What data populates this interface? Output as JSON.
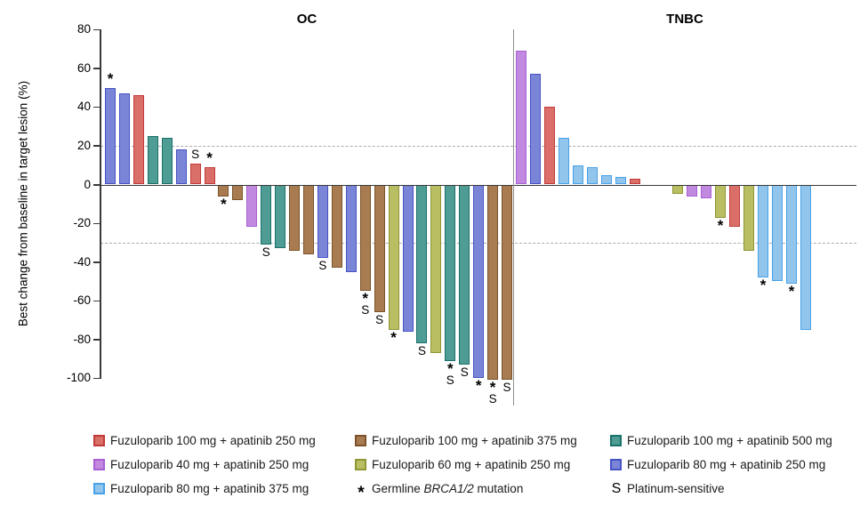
{
  "chart_data": {
    "type": "bar",
    "ylabel": "Best change from baseline in target lesion (%)",
    "ylim": [
      -100,
      80
    ],
    "yticks": [
      80,
      60,
      40,
      20,
      0,
      -20,
      -40,
      -60,
      -80,
      -100
    ],
    "reference_lines": [
      20,
      -30
    ],
    "grid": "off",
    "groups": {
      "fuz100_apa250": {
        "label": "Fuzuloparib 100 mg + apatinib 250 mg",
        "fill": "#D96F68",
        "stroke": "#C33B38"
      },
      "fuz40_apa250": {
        "label": "Fuzuloparib 40 mg + apatinib 250 mg",
        "fill": "#C18AE0",
        "stroke": "#A95FD3"
      },
      "fuz80_apa375": {
        "label": "Fuzuloparib 80 mg + apatinib 375 mg",
        "fill": "#92C5EC",
        "stroke": "#47A2E9"
      },
      "fuz100_apa375": {
        "label": "Fuzuloparib 100 mg + apatinib 375 mg",
        "fill": "#A87C50",
        "stroke": "#7B5229"
      },
      "fuz60_apa250": {
        "label": "Fuzuloparib 60 mg + apatinib 250 mg",
        "fill": "#B9BE62",
        "stroke": "#8F9634"
      },
      "fuz100_apa500": {
        "label": "Fuzuloparib 100 mg + apatinib 500 mg",
        "fill": "#4E9C94",
        "stroke": "#19726B"
      },
      "fuz80_apa250": {
        "label": "Fuzuloparib 80 mg + apatinib 250 mg",
        "fill": "#7B85D8",
        "stroke": "#4553C4"
      }
    },
    "marks_key": {
      "brca": "*",
      "platinum": "S"
    },
    "panels": [
      {
        "title": "OC",
        "bars": [
          {
            "slot": 0,
            "value": 50,
            "group": "fuz80_apa250",
            "marks": [
              "brca"
            ]
          },
          {
            "slot": 1,
            "value": 47,
            "group": "fuz80_apa250",
            "marks": []
          },
          {
            "slot": 2,
            "value": 46,
            "group": "fuz100_apa250",
            "marks": []
          },
          {
            "slot": 3,
            "value": 25,
            "group": "fuz100_apa500",
            "marks": []
          },
          {
            "slot": 4,
            "value": 24,
            "group": "fuz100_apa500",
            "marks": []
          },
          {
            "slot": 5,
            "value": 18,
            "group": "fuz80_apa250",
            "marks": []
          },
          {
            "slot": 6,
            "value": 11,
            "group": "fuz100_apa250",
            "marks": [
              "platinum"
            ]
          },
          {
            "slot": 7,
            "value": 9,
            "group": "fuz100_apa250",
            "marks": [
              "brca"
            ]
          },
          {
            "slot": 8,
            "value": -6,
            "group": "fuz100_apa375",
            "marks": [
              "brca"
            ]
          },
          {
            "slot": 9,
            "value": -8,
            "group": "fuz100_apa375",
            "marks": []
          },
          {
            "slot": 10,
            "value": -22,
            "group": "fuz40_apa250",
            "marks": []
          },
          {
            "slot": 11,
            "value": -31,
            "group": "fuz100_apa500",
            "marks": [
              "platinum"
            ]
          },
          {
            "slot": 12,
            "value": -33,
            "group": "fuz100_apa500",
            "marks": []
          },
          {
            "slot": 13,
            "value": -34,
            "group": "fuz100_apa375",
            "marks": []
          },
          {
            "slot": 14,
            "value": -36,
            "group": "fuz100_apa375",
            "marks": []
          },
          {
            "slot": 15,
            "value": -38,
            "group": "fuz80_apa250",
            "marks": [
              "platinum"
            ]
          },
          {
            "slot": 16,
            "value": -43,
            "group": "fuz100_apa375",
            "marks": []
          },
          {
            "slot": 17,
            "value": -45,
            "group": "fuz80_apa250",
            "marks": []
          },
          {
            "slot": 18,
            "value": -55,
            "group": "fuz100_apa375",
            "marks": [
              "brca",
              "platinum"
            ]
          },
          {
            "slot": 19,
            "value": -66,
            "group": "fuz100_apa375",
            "marks": [
              "platinum"
            ]
          },
          {
            "slot": 20,
            "value": -75,
            "group": "fuz60_apa250",
            "marks": [
              "brca"
            ]
          },
          {
            "slot": 21,
            "value": -76,
            "group": "fuz80_apa250",
            "marks": []
          },
          {
            "slot": 22,
            "value": -82,
            "group": "fuz100_apa500",
            "marks": [
              "platinum"
            ]
          },
          {
            "slot": 23,
            "value": -87,
            "group": "fuz60_apa250",
            "marks": []
          },
          {
            "slot": 24,
            "value": -91,
            "group": "fuz100_apa500",
            "marks": [
              "brca",
              "platinum"
            ]
          },
          {
            "slot": 25,
            "value": -93,
            "group": "fuz100_apa500",
            "marks": [
              "platinum"
            ]
          },
          {
            "slot": 26,
            "value": -100,
            "group": "fuz80_apa250",
            "marks": [
              "brca"
            ]
          },
          {
            "slot": 27,
            "value": -101,
            "group": "fuz100_apa375",
            "marks": [
              "brca",
              "platinum"
            ]
          },
          {
            "slot": 28,
            "value": -101,
            "group": "fuz100_apa375",
            "marks": [
              "platinum"
            ]
          }
        ]
      },
      {
        "title": "TNBC",
        "bars": [
          {
            "slot": 0,
            "value": 69,
            "group": "fuz40_apa250",
            "marks": []
          },
          {
            "slot": 1,
            "value": 57,
            "group": "fuz80_apa250",
            "marks": []
          },
          {
            "slot": 2,
            "value": 40,
            "group": "fuz100_apa250",
            "marks": []
          },
          {
            "slot": 3,
            "value": 24,
            "group": "fuz80_apa375",
            "marks": []
          },
          {
            "slot": 4,
            "value": 10,
            "group": "fuz80_apa375",
            "marks": []
          },
          {
            "slot": 5,
            "value": 9,
            "group": "fuz80_apa375",
            "marks": []
          },
          {
            "slot": 6,
            "value": 5,
            "group": "fuz80_apa375",
            "marks": []
          },
          {
            "slot": 7,
            "value": 4,
            "group": "fuz80_apa375",
            "marks": []
          },
          {
            "slot": 8,
            "value": 3,
            "group": "fuz100_apa250",
            "marks": []
          },
          {
            "slot": 11,
            "value": -5,
            "group": "fuz60_apa250",
            "marks": []
          },
          {
            "slot": 12,
            "value": -6,
            "group": "fuz40_apa250",
            "marks": []
          },
          {
            "slot": 13,
            "value": -7,
            "group": "fuz40_apa250",
            "marks": []
          },
          {
            "slot": 14,
            "value": -17,
            "group": "fuz60_apa250",
            "marks": [
              "brca"
            ]
          },
          {
            "slot": 15,
            "value": -22,
            "group": "fuz100_apa250",
            "marks": []
          },
          {
            "slot": 16,
            "value": -34,
            "group": "fuz60_apa250",
            "marks": []
          },
          {
            "slot": 17,
            "value": -48,
            "group": "fuz80_apa375",
            "marks": [
              "brca"
            ]
          },
          {
            "slot": 18,
            "value": -50,
            "group": "fuz80_apa375",
            "marks": []
          },
          {
            "slot": 19,
            "value": -51,
            "group": "fuz80_apa375",
            "marks": [
              "brca"
            ]
          },
          {
            "slot": 20,
            "value": -75,
            "group": "fuz80_apa375",
            "marks": []
          }
        ]
      }
    ],
    "legend": {
      "items": [
        {
          "type": "swatch",
          "group": "fuz100_apa250",
          "label": "Fuzuloparib 100 mg + apatinib 250 mg",
          "col": 0,
          "row": 0
        },
        {
          "type": "swatch",
          "group": "fuz40_apa250",
          "label": "Fuzuloparib 40 mg + apatinib 250 mg",
          "col": 0,
          "row": 1
        },
        {
          "type": "swatch",
          "group": "fuz80_apa375",
          "label": "Fuzuloparib 80 mg + apatinib 375 mg",
          "col": 0,
          "row": 2
        },
        {
          "type": "swatch",
          "group": "fuz100_apa375",
          "label": "Fuzuloparib 100 mg + apatinib 375 mg",
          "col": 1,
          "row": 0
        },
        {
          "type": "swatch",
          "group": "fuz60_apa250",
          "label": "Fuzuloparib 60 mg + apatinib 250 mg",
          "col": 1,
          "row": 1
        },
        {
          "type": "symbol",
          "symbol": "*",
          "label_parts": [
            "Germline ",
            "BRCA1/2",
            " mutation"
          ],
          "italic_part": 1,
          "col": 1,
          "row": 2
        },
        {
          "type": "swatch",
          "group": "fuz100_apa500",
          "label": "Fuzuloparib 100 mg + apatinib 500 mg",
          "col": 2,
          "row": 0
        },
        {
          "type": "swatch",
          "group": "fuz80_apa250",
          "label": "Fuzuloparib 80 mg + apatinib 250 mg",
          "col": 2,
          "row": 1
        },
        {
          "type": "symbol",
          "symbol": "S",
          "label": "Platinum-sensitive",
          "col": 2,
          "row": 2
        }
      ]
    }
  }
}
